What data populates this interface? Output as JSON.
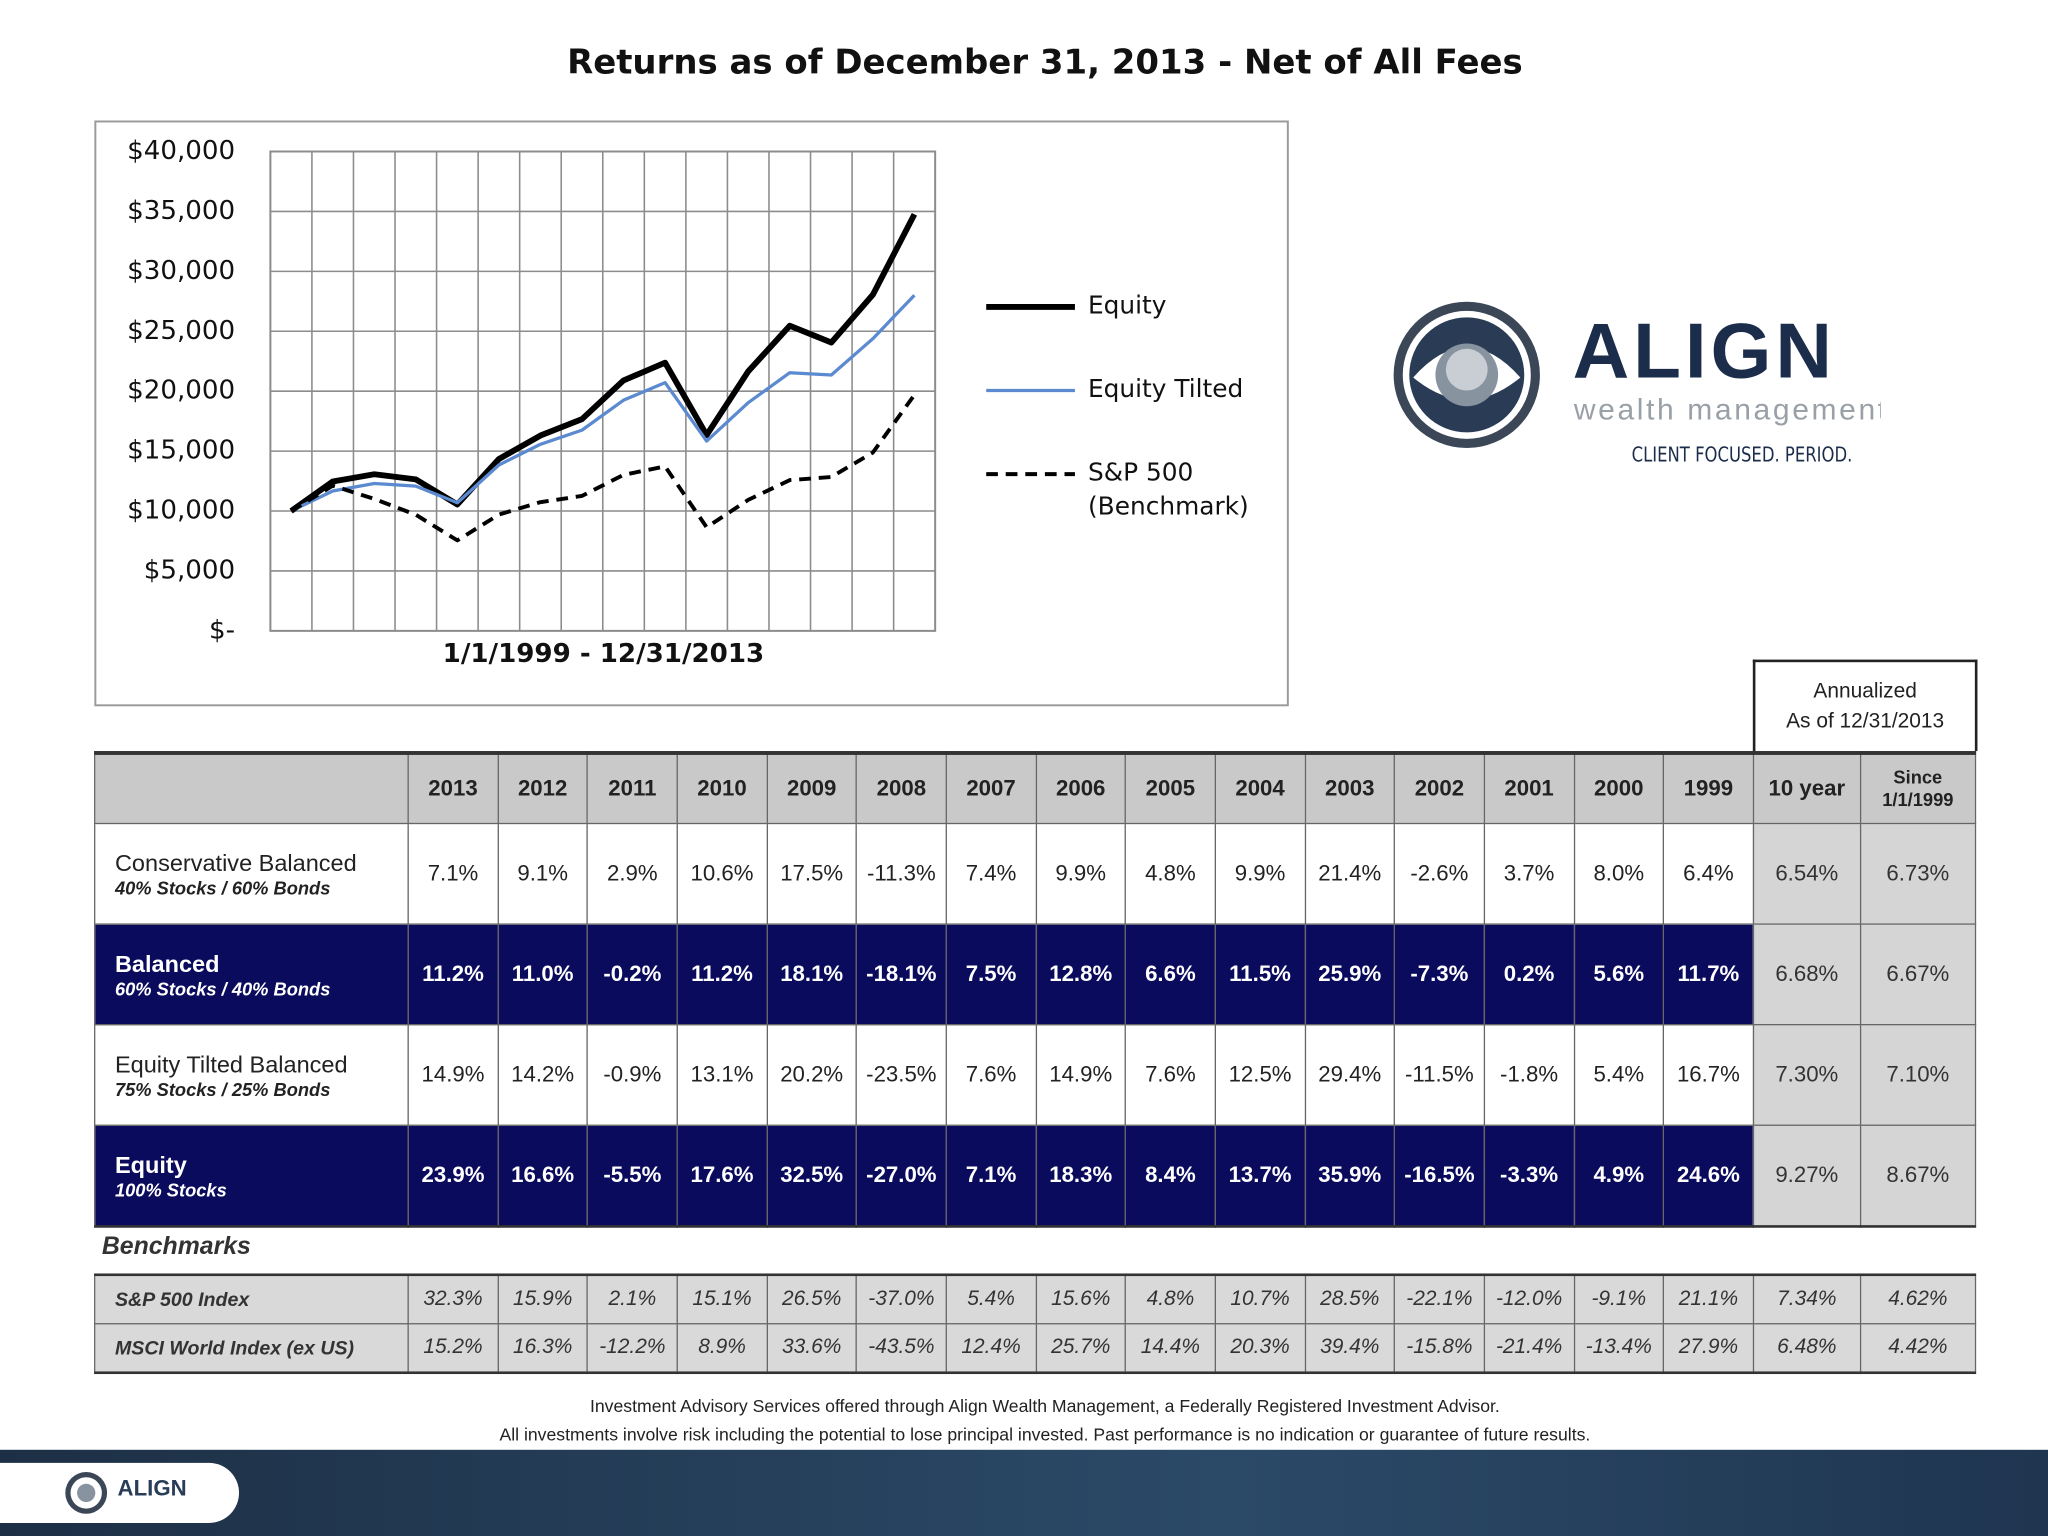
{
  "chart_data": {
    "type": "line",
    "title": "Returns as of December 31, 2013 -  Net of All Fees",
    "x_label": "1/1/1999 - 12/31/2013",
    "categories": [
      null,
      null,
      null,
      null,
      null,
      null,
      null,
      null,
      null,
      null,
      null,
      null,
      null,
      null,
      null,
      null
    ],
    "series": [
      {
        "name": "Equity",
        "color": "#000000",
        "values": [
          10000,
          12460,
          13070,
          12640,
          10550,
          14340,
          16300,
          17670,
          20900,
          22380,
          16340,
          21650,
          25460,
          24060,
          28050,
          34760
        ]
      },
      {
        "name": "Equity Tilted",
        "color": "#5b8ad0",
        "values": [
          10000,
          11670,
          12300,
          12080,
          10690,
          13840,
          15570,
          16750,
          19250,
          20710,
          15840,
          19040,
          21540,
          21350,
          24380,
          28010
        ]
      },
      {
        "name": "S&P 500 (Benchmark)",
        "color": "#000000",
        "values": [
          10000,
          12110,
          11010,
          9690,
          7550,
          9700,
          10740,
          11260,
          13020,
          13720,
          8640,
          10930,
          12580,
          12840,
          14880,
          19690
        ]
      }
    ],
    "ylim": [
      0,
      40000
    ],
    "yticks": [
      {
        "value": 0,
        "label": "$-"
      },
      {
        "value": 5000,
        "label": "$5,000"
      },
      {
        "value": 10000,
        "label": "$10,000"
      },
      {
        "value": 15000,
        "label": "$15,000"
      },
      {
        "value": 20000,
        "label": "$20,000"
      },
      {
        "value": 25000,
        "label": "$25,000"
      },
      {
        "value": 30000,
        "label": "$30,000"
      },
      {
        "value": 35000,
        "label": "$35,000"
      },
      {
        "value": 40000,
        "label": "$40,000"
      }
    ],
    "grid": true,
    "legend": "right"
  },
  "logo": {
    "name": "ALIGN",
    "subtitle": "wealth management",
    "tagline": "CLIENT FOCUSED. PERIOD."
  },
  "table": {
    "annualized_header": [
      "Annualized",
      "As of 12/31/2013"
    ],
    "columns": [
      "2013",
      "2012",
      "2011",
      "2010",
      "2009",
      "2008",
      "2007",
      "2006",
      "2005",
      "2004",
      "2003",
      "2002",
      "2001",
      "2000",
      "1999",
      "10 year",
      "Since 1/1/1999"
    ],
    "rows": [
      {
        "name": "Conservative Balanced",
        "subtitle": "40% Stocks / 60% Bonds",
        "cells": [
          "7.1%",
          "9.1%",
          "2.9%",
          "10.6%",
          "17.5%",
          "-11.3%",
          "7.4%",
          "9.9%",
          "4.8%",
          "9.9%",
          "21.4%",
          "-2.6%",
          "3.7%",
          "8.0%",
          "6.4%",
          "6.54%",
          "6.73%"
        ]
      },
      {
        "name": "Balanced",
        "subtitle": "60% Stocks / 40% Bonds",
        "cells": [
          "11.2%",
          "11.0%",
          "-0.2%",
          "11.2%",
          "18.1%",
          "-18.1%",
          "7.5%",
          "12.8%",
          "6.6%",
          "11.5%",
          "25.9%",
          "-7.3%",
          "0.2%",
          "5.6%",
          "11.7%",
          "6.68%",
          "6.67%"
        ]
      },
      {
        "name": "Equity Tilted  Balanced",
        "subtitle": "75% Stocks / 25% Bonds",
        "cells": [
          "14.9%",
          "14.2%",
          "-0.9%",
          "13.1%",
          "20.2%",
          "-23.5%",
          "7.6%",
          "14.9%",
          "7.6%",
          "12.5%",
          "29.4%",
          "-11.5%",
          "-1.8%",
          "5.4%",
          "16.7%",
          "7.30%",
          "7.10%"
        ]
      },
      {
        "name": "Equity",
        "subtitle": "100% Stocks",
        "cells": [
          "23.9%",
          "16.6%",
          "-5.5%",
          "17.6%",
          "32.5%",
          "-27.0%",
          "7.1%",
          "18.3%",
          "8.4%",
          "13.7%",
          "35.9%",
          "-16.5%",
          "-3.3%",
          "4.9%",
          "24.6%",
          "9.27%",
          "8.67%"
        ]
      }
    ],
    "benchmarks_label": "Benchmarks",
    "benchmark_rows": [
      {
        "name": "S&P 500 Index",
        "cells": [
          "32.3%",
          "15.9%",
          "2.1%",
          "15.1%",
          "26.5%",
          "-37.0%",
          "5.4%",
          "15.6%",
          "4.8%",
          "10.7%",
          "28.5%",
          "-22.1%",
          "-12.0%",
          "-9.1%",
          "21.1%",
          "7.34%",
          "4.62%"
        ]
      },
      {
        "name": "MSCI World Index (ex US)",
        "cells": [
          "15.2%",
          "16.3%",
          "-12.2%",
          "8.9%",
          "33.6%",
          "-43.5%",
          "12.4%",
          "25.7%",
          "14.4%",
          "20.3%",
          "39.4%",
          "-15.8%",
          "-21.4%",
          "-13.4%",
          "27.9%",
          "6.48%",
          "4.42%"
        ]
      }
    ]
  },
  "footer": {
    "disclaimer": [
      "Investment Advisory Services offered through Align Wealth Management, a Federally Registered Investment Advisor.",
      "All investments involve risk including the potential to lose principal invested. Past performance is no indication or guarantee of future results."
    ],
    "brand": "ALIGN"
  }
}
